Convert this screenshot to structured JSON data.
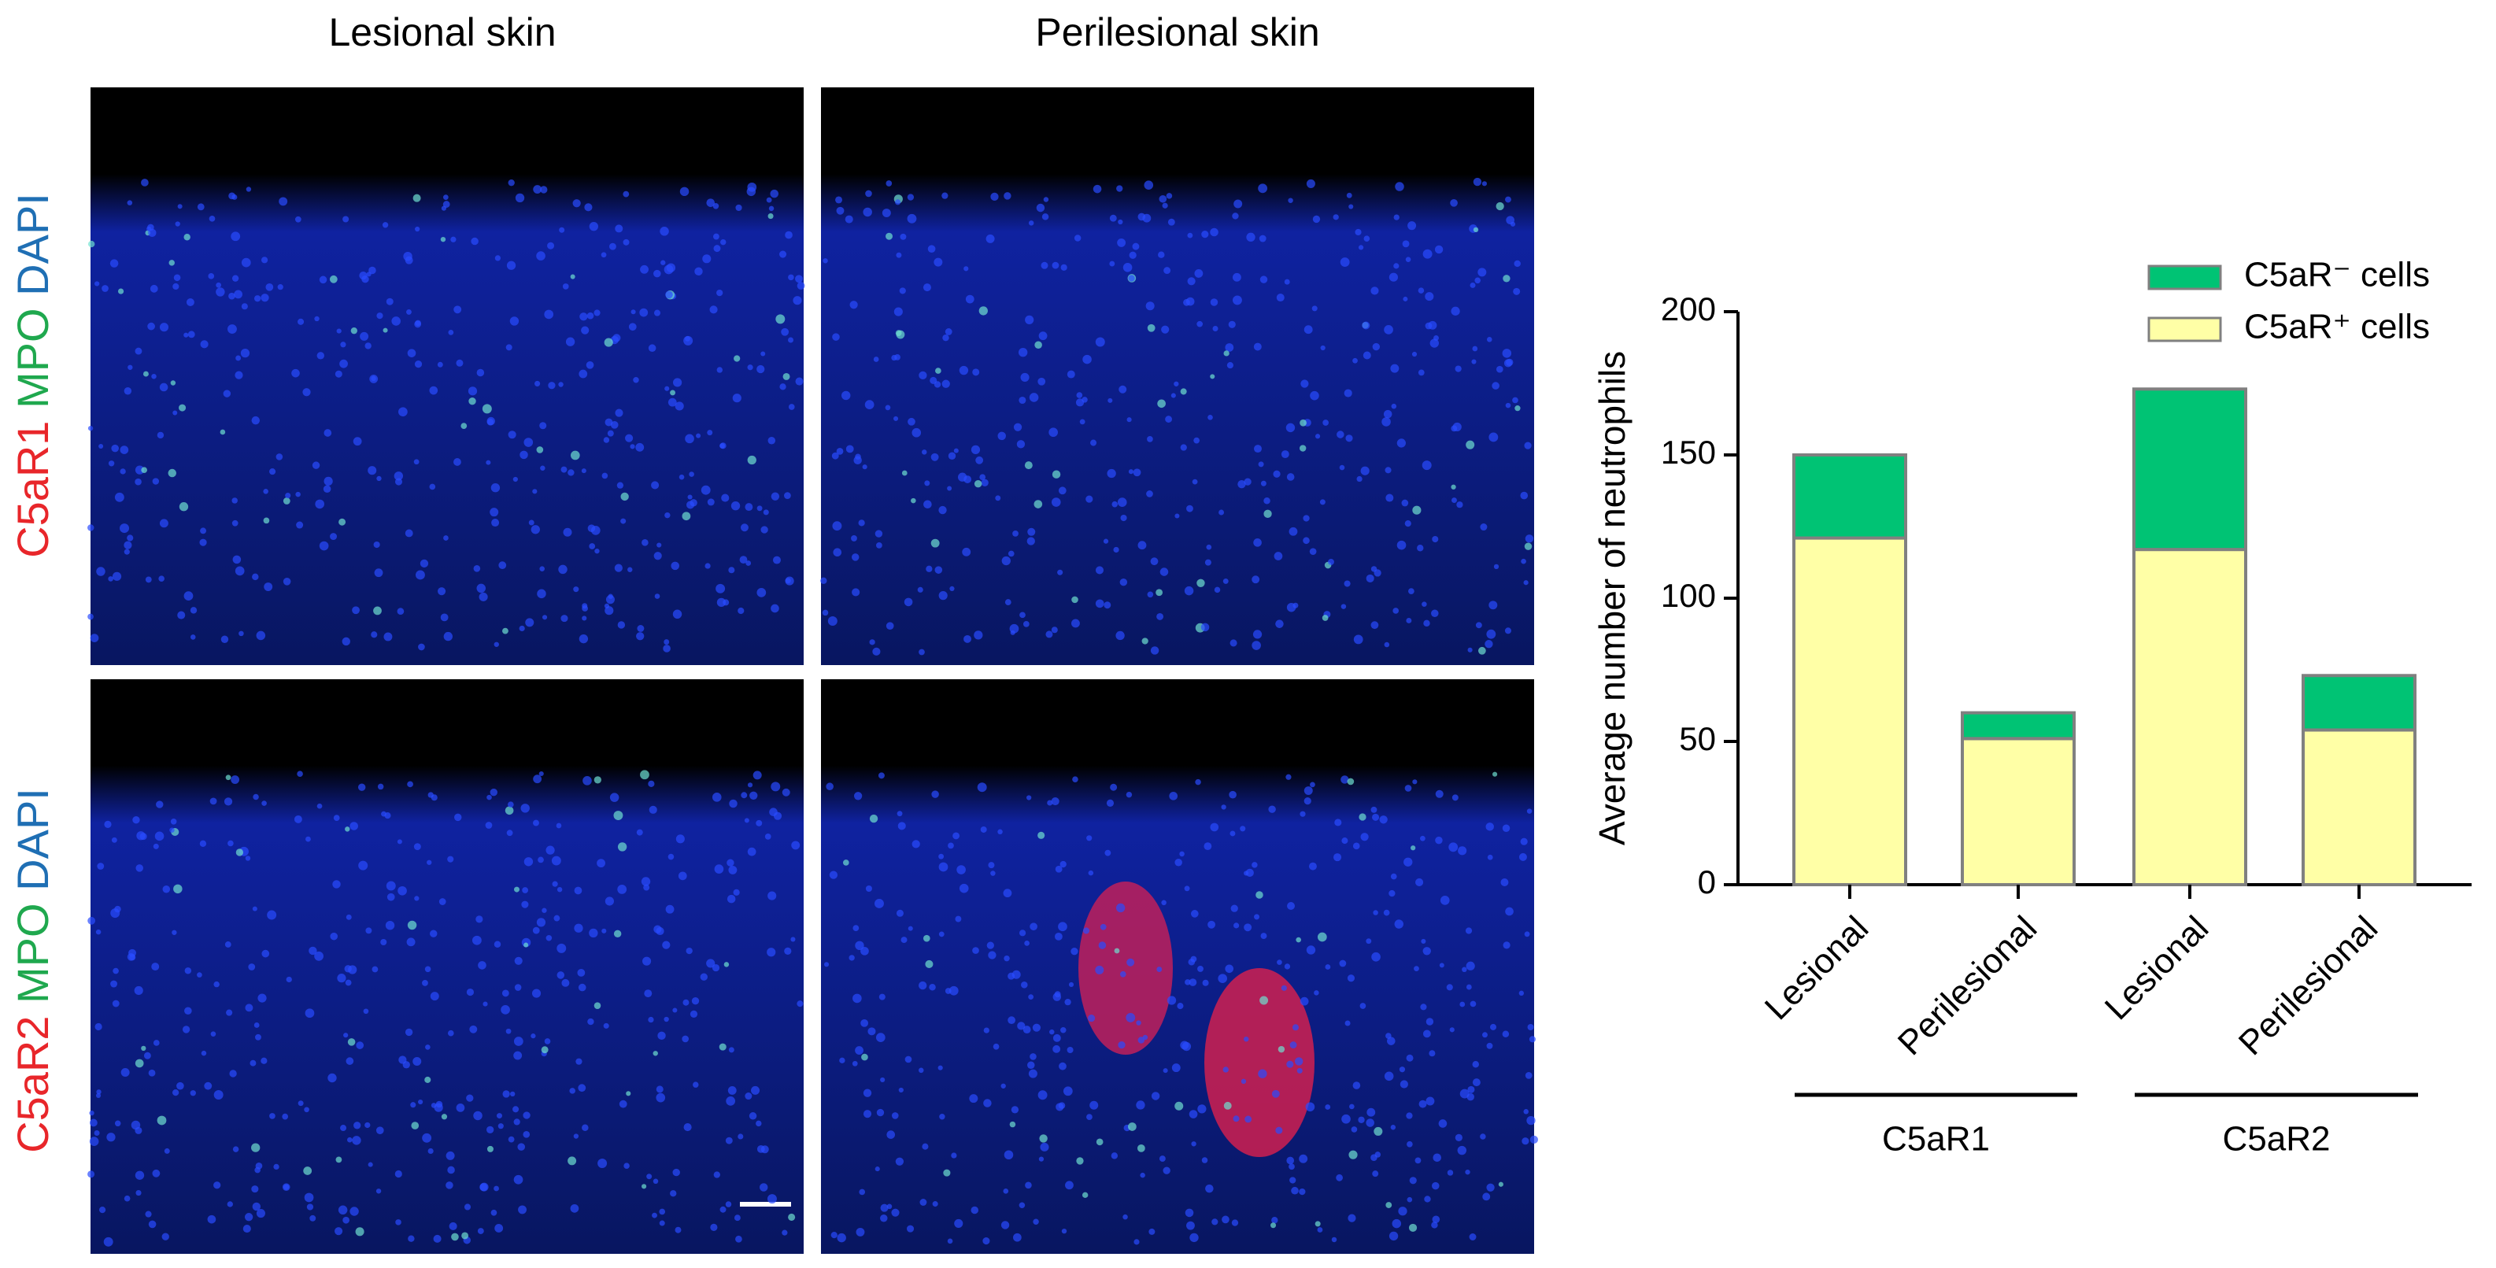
{
  "panels": {
    "column_titles": [
      "Lesional skin",
      "Perilesional skin"
    ],
    "row_labels": [
      [
        "C5aR1",
        "MPO",
        "DAPI"
      ],
      [
        "C5aR2",
        "MPO",
        "DAPI"
      ]
    ],
    "stain_colors": [
      "#e8262a",
      "#1fa84e",
      "#1f6fb4"
    ]
  },
  "chart_data": {
    "type": "stacked_bar",
    "y_label": "Average number of neutrophils",
    "categories": [
      "Lesional",
      "Perilesional",
      "Lesional",
      "Perilesional"
    ],
    "groups": [
      {
        "label": "C5aR1",
        "categories": [
          0,
          1
        ]
      },
      {
        "label": "C5aR2",
        "categories": [
          2,
          3
        ]
      }
    ],
    "series": [
      {
        "name": "C5aR⁺ cells",
        "color": "#ffffa6",
        "values": [
          121,
          51,
          117,
          54
        ]
      },
      {
        "name": "C5aR⁻ cells",
        "color": "#00c374",
        "values": [
          29,
          9,
          56,
          19
        ]
      }
    ],
    "ylim": [
      0,
      200
    ],
    "yticks": [
      0,
      50,
      100,
      150,
      200
    ],
    "legend": "top-right"
  }
}
